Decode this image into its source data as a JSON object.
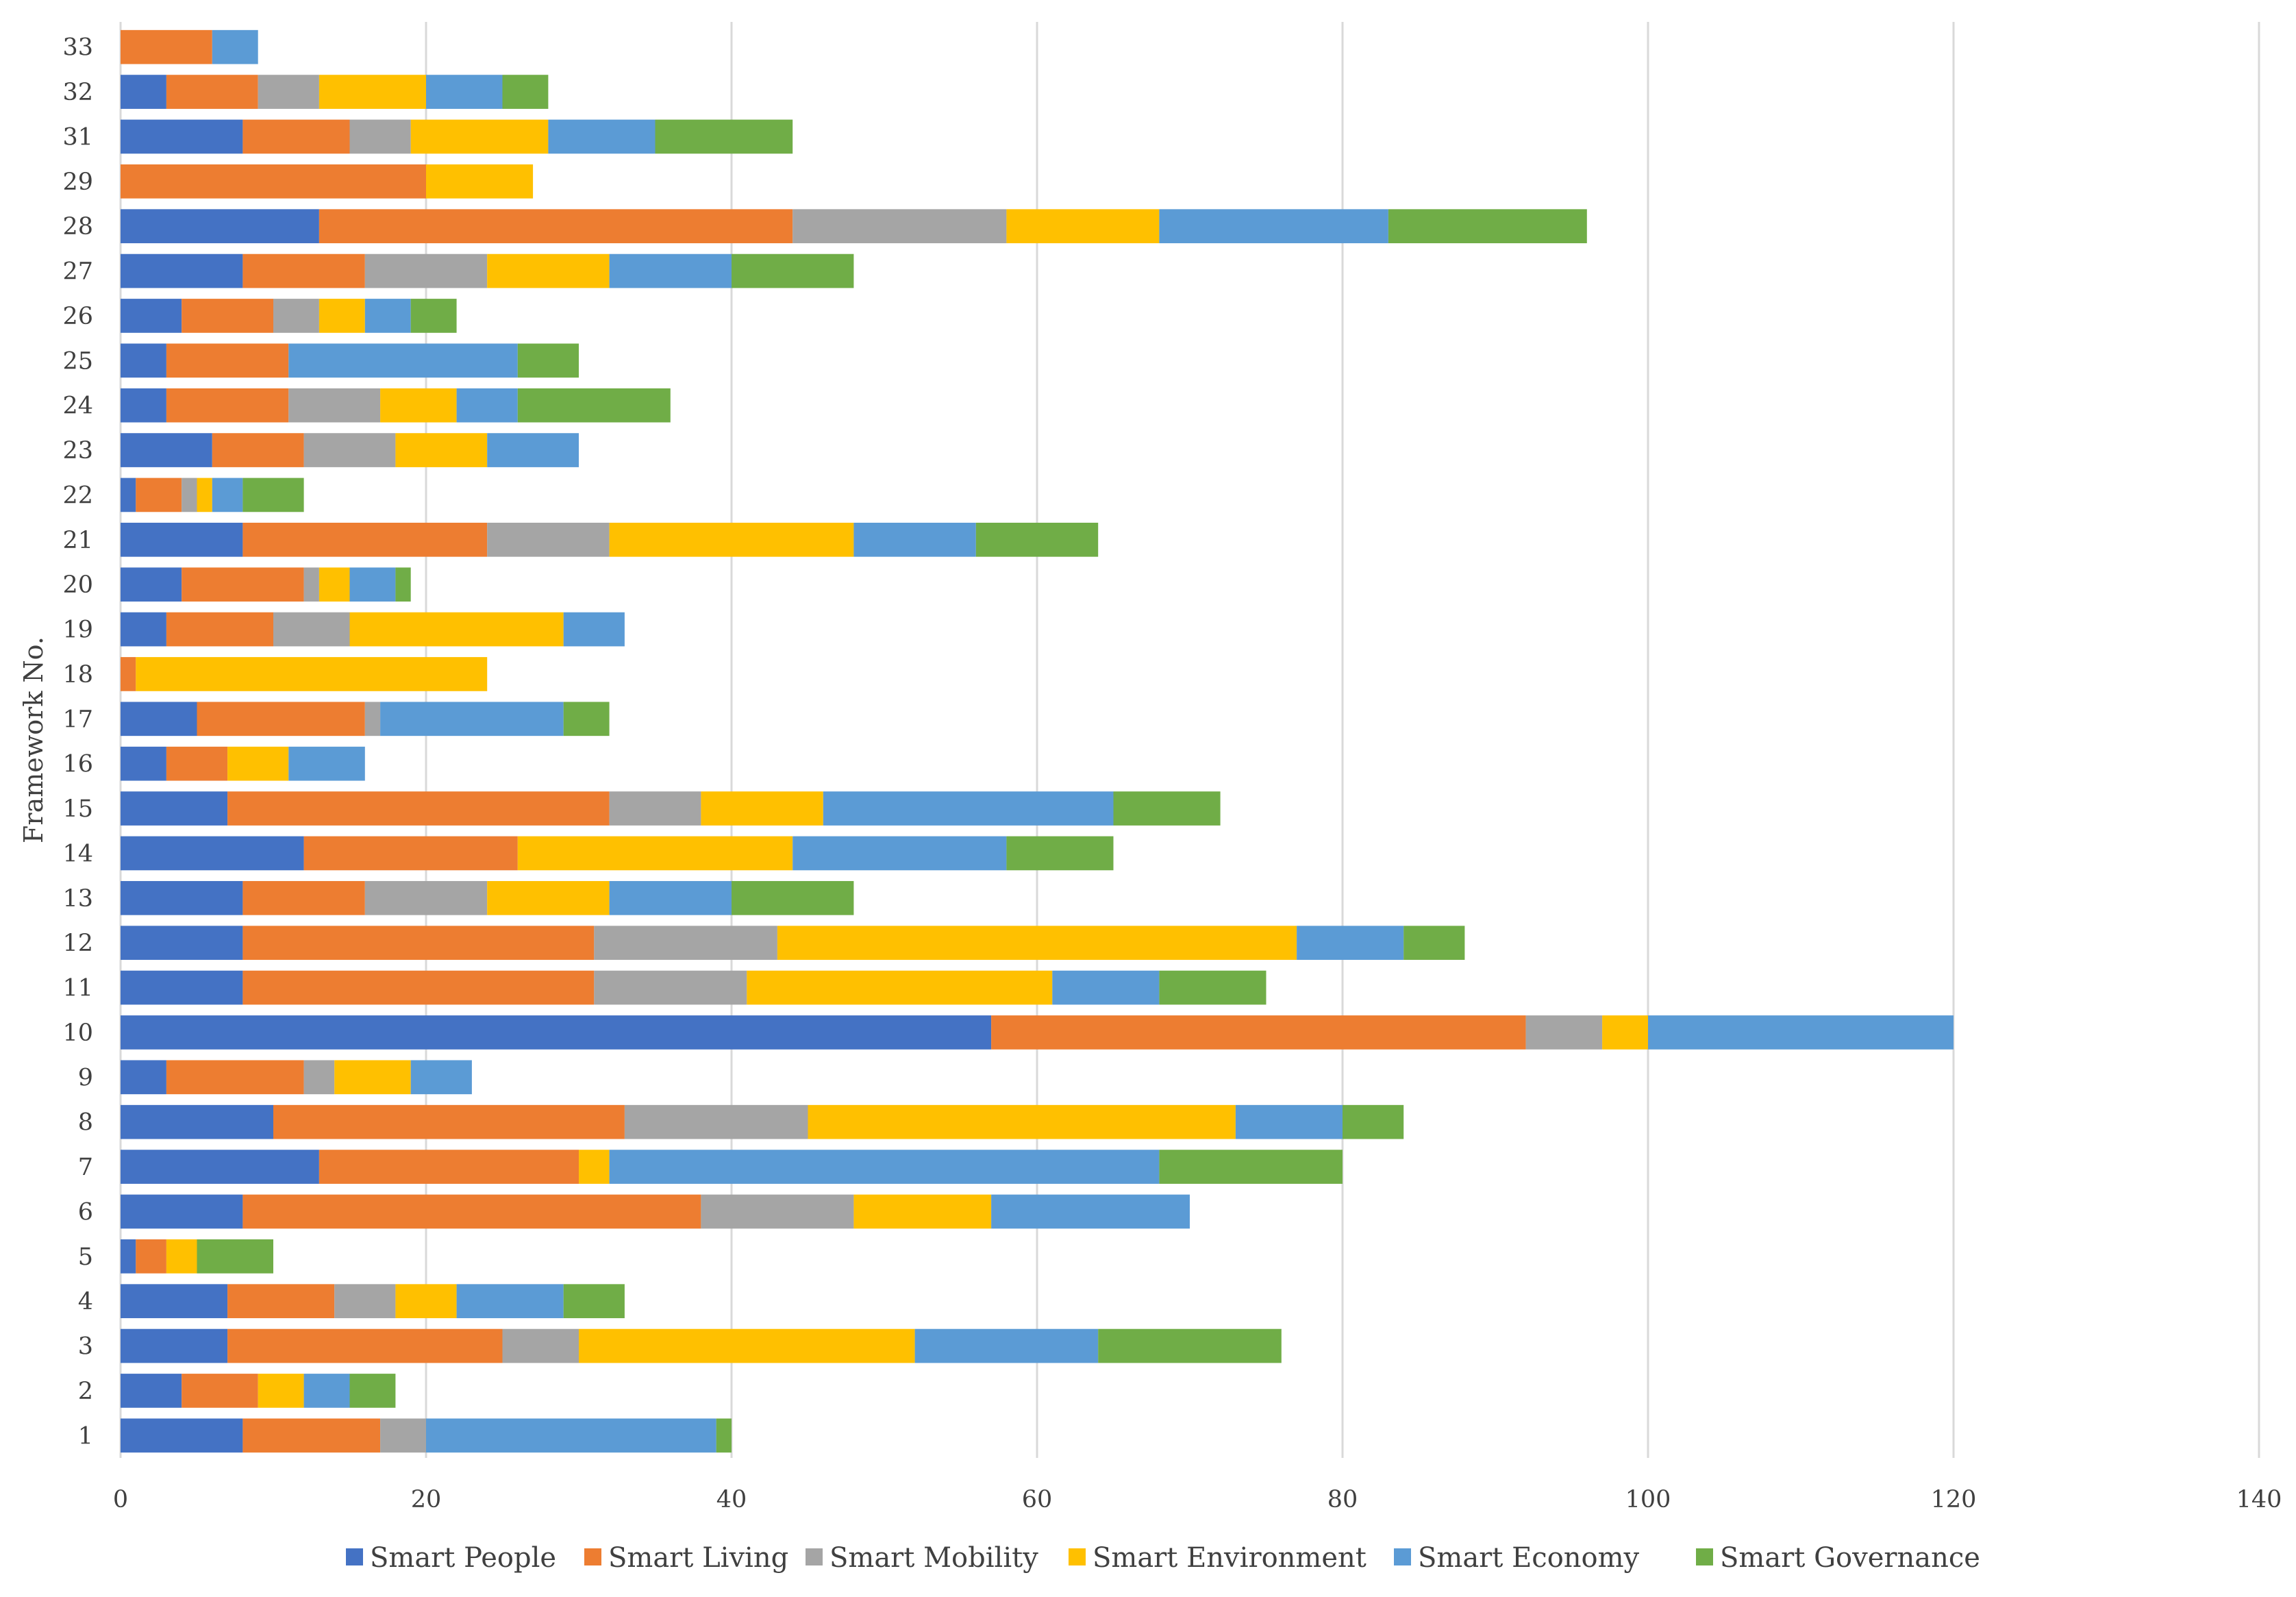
{
  "chart_data": {
    "type": "bar",
    "orientation": "horizontal",
    "stacked": true,
    "title": "",
    "xlabel": "",
    "ylabel": "Framework No.",
    "xlim": [
      0,
      140
    ],
    "x_ticks": [
      0,
      20,
      40,
      60,
      80,
      100,
      120,
      140
    ],
    "grid": "vertical",
    "legend_position": "bottom",
    "categories": [
      "33",
      "32",
      "31",
      "29",
      "28",
      "27",
      "26",
      "25",
      "24",
      "23",
      "22",
      "21",
      "20",
      "19",
      "18",
      "17",
      "16",
      "15",
      "14",
      "13",
      "12",
      "11",
      "10",
      "9",
      "8",
      "7",
      "6",
      "5",
      "4",
      "3",
      "2",
      "1"
    ],
    "series": [
      {
        "name": "Smart People",
        "color": "#4472C4",
        "values": [
          0,
          3,
          8,
          0,
          13,
          8,
          4,
          3,
          3,
          6,
          1,
          8,
          4,
          3,
          0,
          5,
          3,
          7,
          12,
          8,
          8,
          8,
          57,
          3,
          10,
          13,
          8,
          1,
          7,
          7,
          4,
          8
        ]
      },
      {
        "name": "Smart Living",
        "color": "#ED7D31",
        "values": [
          6,
          6,
          7,
          20,
          31,
          8,
          6,
          8,
          8,
          6,
          3,
          16,
          8,
          7,
          1,
          11,
          4,
          25,
          14,
          8,
          23,
          23,
          35,
          9,
          23,
          17,
          30,
          2,
          7,
          18,
          5,
          9
        ]
      },
      {
        "name": "Smart Mobility",
        "color": "#A5A5A5",
        "values": [
          0,
          4,
          4,
          0,
          14,
          8,
          3,
          0,
          6,
          6,
          1,
          8,
          1,
          5,
          0,
          1,
          0,
          6,
          0,
          8,
          12,
          10,
          5,
          2,
          12,
          0,
          10,
          0,
          4,
          5,
          0,
          3
        ]
      },
      {
        "name": "Smart Environment",
        "color": "#FFC000",
        "values": [
          0,
          7,
          9,
          7,
          10,
          8,
          3,
          0,
          5,
          6,
          1,
          16,
          2,
          14,
          23,
          0,
          4,
          8,
          18,
          8,
          34,
          20,
          3,
          5,
          28,
          2,
          9,
          2,
          4,
          22,
          3,
          0
        ]
      },
      {
        "name": "Smart Economy",
        "color": "#5B9BD5",
        "values": [
          3,
          5,
          7,
          0,
          15,
          8,
          3,
          15,
          4,
          6,
          2,
          8,
          3,
          4,
          0,
          12,
          5,
          19,
          14,
          8,
          7,
          7,
          20,
          4,
          7,
          36,
          13,
          0,
          7,
          12,
          3,
          19
        ]
      },
      {
        "name": "Smart Governance",
        "color": "#70AD47",
        "values": [
          0,
          3,
          9,
          0,
          13,
          8,
          3,
          4,
          10,
          0,
          4,
          8,
          1,
          0,
          0,
          3,
          0,
          7,
          7,
          8,
          4,
          7,
          0,
          0,
          4,
          12,
          0,
          5,
          4,
          12,
          3,
          1
        ]
      }
    ]
  }
}
